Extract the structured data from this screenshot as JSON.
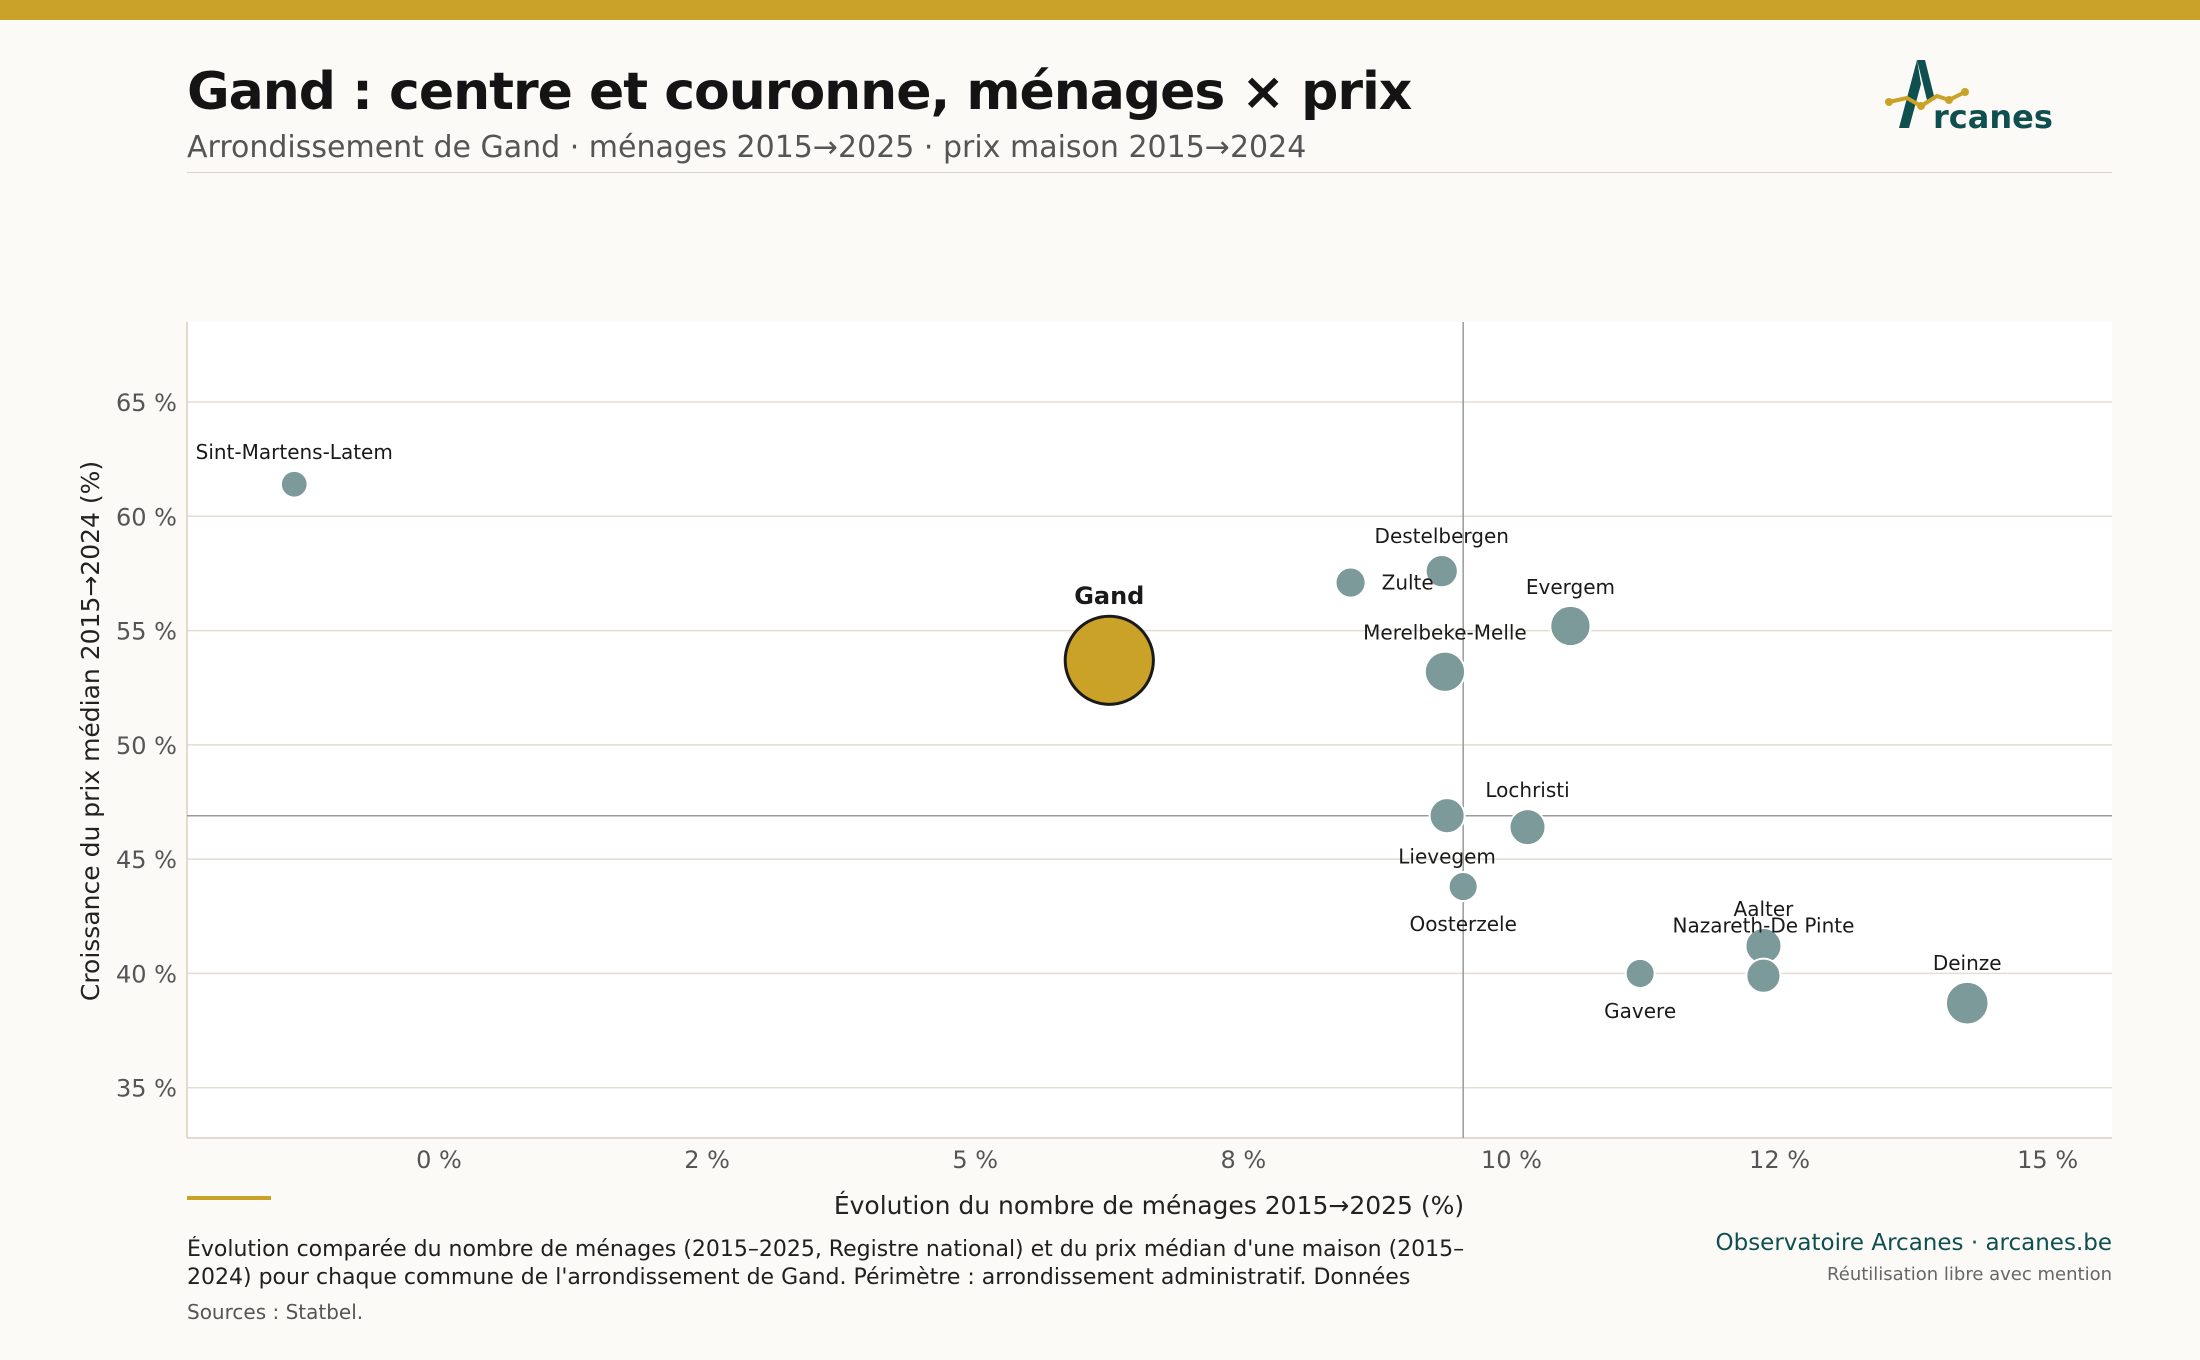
{
  "header": {
    "title": "Gand : centre et couronne, ménages × prix",
    "subtitle": "Arrondissement de Gand · ménages 2015→2025 · prix maison 2015→2024",
    "logo_text": "rcanes"
  },
  "colors": {
    "accent": "#c9a227",
    "point": "#7d9a9a",
    "brand": "#0f4f50",
    "grid": "#e3ddd2",
    "reference_line": "#9a9a9a"
  },
  "chart_data": {
    "type": "scatter",
    "title": "",
    "xlabel": "Évolution du nombre de ménages 2015→2025 (%)",
    "ylabel": "Croissance du prix médian 2015→2024 (%)",
    "xlim": [
      -2.35,
      15.6
    ],
    "ylim": [
      32.8,
      68.5
    ],
    "x_ticks": [
      0,
      2.5,
      5,
      7.5,
      10,
      12.5,
      15
    ],
    "x_tick_labels": [
      "0 %",
      "2 %",
      "5 %",
      "8 %",
      "10 %",
      "12 %",
      "15 %"
    ],
    "y_ticks": [
      35,
      40,
      45,
      50,
      55,
      60,
      65
    ],
    "y_tick_labels": [
      "35 %",
      "40 %",
      "45 %",
      "50 %",
      "55 %",
      "60 %",
      "65 %"
    ],
    "grid": "horizontal",
    "reference_lines": {
      "x": 9.55,
      "y": 46.9
    },
    "size_encodes": "households",
    "points": [
      {
        "name": "Sint-Martens-Latem",
        "x": -1.35,
        "y": 61.4,
        "size": 0.55,
        "highlight": false,
        "label_pos": "above"
      },
      {
        "name": "Gand",
        "x": 6.25,
        "y": 53.7,
        "size": 6.0,
        "highlight": true,
        "label_pos": "above"
      },
      {
        "name": "Zulte",
        "x": 8.5,
        "y": 57.1,
        "size": 0.7,
        "highlight": false,
        "label_pos": "right"
      },
      {
        "name": "Destelbergen",
        "x": 9.35,
        "y": 57.6,
        "size": 0.8,
        "highlight": false,
        "label_pos": "above"
      },
      {
        "name": "Evergem",
        "x": 10.55,
        "y": 55.2,
        "size": 1.25,
        "highlight": false,
        "label_pos": "above"
      },
      {
        "name": "Merelbeke-Melle",
        "x": 9.38,
        "y": 53.2,
        "size": 1.25,
        "highlight": false,
        "label_pos": "above"
      },
      {
        "name": "Lochristi",
        "x": 10.15,
        "y": 46.4,
        "size": 1.0,
        "highlight": false,
        "label_pos": "above"
      },
      {
        "name": "Lievegem",
        "x": 9.4,
        "y": 46.9,
        "size": 0.95,
        "highlight": false,
        "label_pos": "below"
      },
      {
        "name": "Oosterzele",
        "x": 9.55,
        "y": 43.8,
        "size": 0.65,
        "highlight": false,
        "label_pos": "below"
      },
      {
        "name": "Gavere",
        "x": 11.2,
        "y": 40.0,
        "size": 0.65,
        "highlight": false,
        "label_pos": "below"
      },
      {
        "name": "Aalter",
        "x": 12.35,
        "y": 41.2,
        "size": 1.0,
        "highlight": false,
        "label_pos": "above"
      },
      {
        "name": "Nazareth-De Pinte",
        "x": 12.35,
        "y": 39.9,
        "size": 0.9,
        "highlight": false,
        "label_pos": "above-offset"
      },
      {
        "name": "Deinze",
        "x": 14.25,
        "y": 38.7,
        "size": 1.4,
        "highlight": false,
        "label_pos": "above"
      }
    ]
  },
  "footer": {
    "caption": "Évolution comparée du nombre de ménages (2015–2025, Registre national) et du prix médian d'une maison (2015–2024) pour chaque commune de l'arrondissement de Gand. Périmètre : arrondissement administratif. Données",
    "sources": "Sources : Statbel.",
    "brand_line": "Observatoire Arcanes · arcanes.be",
    "license": "Réutilisation libre avec mention"
  }
}
